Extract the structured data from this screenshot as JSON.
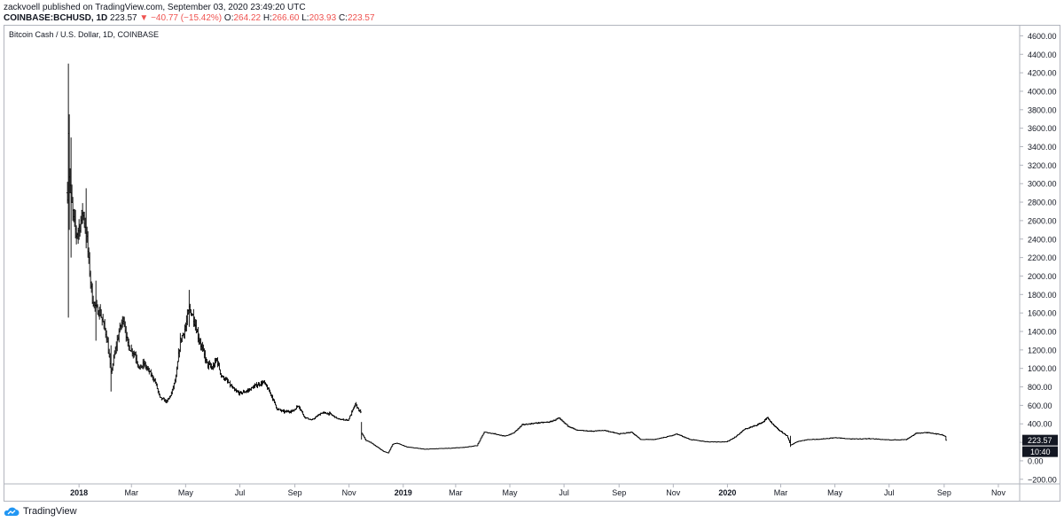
{
  "header": {
    "publish_line": "zackvoell published on TradingView.com, September 03, 2020 23:49:20 UTC",
    "symbol": "COINBASE:BCHUSD, 1D",
    "last": "223.57",
    "change_arrow": "▼",
    "change": "−40.77 (−15.42%)",
    "o_label": "O:",
    "o_val": "264.22",
    "h_label": "H:",
    "h_val": "266.60",
    "l_label": "L:",
    "l_val": "203.93",
    "c_label": "C:",
    "c_val": "223.57"
  },
  "footer": {
    "brand": "TradingView"
  },
  "colors": {
    "ohlc": "#ef5350",
    "bars": "#000000",
    "grid_border": "#b2b5be",
    "badge_bg": "#131722"
  },
  "chart_data": {
    "type": "ohlc",
    "title": "Bitcoin Cash / U.S. Dollar, 1D, COINBASE",
    "ylim": [
      -250,
      4700
    ],
    "y_ticks": [
      -200,
      0,
      200,
      400,
      600,
      800,
      1000,
      1200,
      1400,
      1600,
      1800,
      2000,
      2200,
      2400,
      2600,
      2800,
      3000,
      3200,
      3400,
      3600,
      3800,
      4000,
      4200,
      4400,
      4600
    ],
    "y_tick_labels": [
      "−200.00",
      "0.00",
      "200.00",
      "400.00",
      "600.00",
      "800.00",
      "1000.00",
      "1200.00",
      "1400.00",
      "1600.00",
      "1800.00",
      "2000.00",
      "2200.00",
      "2400.00",
      "2600.00",
      "2800.00",
      "3000.00",
      "3200.00",
      "3400.00",
      "3600.00",
      "3800.00",
      "4000.00",
      "4200.00",
      "4400.00",
      "4600.00"
    ],
    "x_range": [
      "2017-10-10",
      "2020-11-25"
    ],
    "x_ticks": [
      {
        "date": "2018-01-01",
        "label": "2018",
        "bold": true
      },
      {
        "date": "2018-03-01",
        "label": "Mar"
      },
      {
        "date": "2018-05-01",
        "label": "May"
      },
      {
        "date": "2018-07-01",
        "label": "Jul"
      },
      {
        "date": "2018-09-01",
        "label": "Sep"
      },
      {
        "date": "2018-11-01",
        "label": "Nov"
      },
      {
        "date": "2019-01-01",
        "label": "2019",
        "bold": true
      },
      {
        "date": "2019-03-01",
        "label": "Mar"
      },
      {
        "date": "2019-05-01",
        "label": "May"
      },
      {
        "date": "2019-07-01",
        "label": "Jul"
      },
      {
        "date": "2019-09-01",
        "label": "Sep"
      },
      {
        "date": "2019-11-01",
        "label": "Nov"
      },
      {
        "date": "2020-01-01",
        "label": "2020",
        "bold": true
      },
      {
        "date": "2020-03-01",
        "label": "Mar"
      },
      {
        "date": "2020-05-01",
        "label": "May"
      },
      {
        "date": "2020-07-01",
        "label": "Jul"
      },
      {
        "date": "2020-09-01",
        "label": "Sep"
      },
      {
        "date": "2020-11-01",
        "label": "Nov"
      }
    ],
    "price_label": "223.57",
    "countdown_label": "10:40",
    "series": [
      {
        "anchors": [
          [
            "2017-12-19",
            2900
          ],
          [
            "2017-12-20",
            3600
          ],
          [
            "2017-12-21",
            3100
          ],
          [
            "2017-12-23",
            2850
          ],
          [
            "2017-12-26",
            2600
          ],
          [
            "2017-12-29",
            2450
          ],
          [
            "2018-01-02",
            2550
          ],
          [
            "2018-01-05",
            2700
          ],
          [
            "2018-01-09",
            2500
          ],
          [
            "2018-01-12",
            2150
          ],
          [
            "2018-01-16",
            1750
          ],
          [
            "2018-01-20",
            1650
          ],
          [
            "2018-01-25",
            1600
          ],
          [
            "2018-02-01",
            1350
          ],
          [
            "2018-02-06",
            950
          ],
          [
            "2018-02-10",
            1150
          ],
          [
            "2018-02-15",
            1400
          ],
          [
            "2018-02-20",
            1550
          ],
          [
            "2018-02-25",
            1250
          ],
          [
            "2018-03-05",
            1150
          ],
          [
            "2018-03-10",
            1000
          ],
          [
            "2018-03-15",
            1050
          ],
          [
            "2018-03-22",
            950
          ],
          [
            "2018-03-28",
            850
          ],
          [
            "2018-04-02",
            680
          ],
          [
            "2018-04-10",
            640
          ],
          [
            "2018-04-15",
            730
          ],
          [
            "2018-04-20",
            900
          ],
          [
            "2018-04-25",
            1300
          ],
          [
            "2018-05-01",
            1450
          ],
          [
            "2018-05-05",
            1650
          ],
          [
            "2018-05-10",
            1550
          ],
          [
            "2018-05-15",
            1350
          ],
          [
            "2018-05-20",
            1200
          ],
          [
            "2018-05-25",
            1050
          ],
          [
            "2018-05-31",
            1000
          ],
          [
            "2018-06-05",
            1100
          ],
          [
            "2018-06-10",
            920
          ],
          [
            "2018-06-15",
            880
          ],
          [
            "2018-06-25",
            760
          ],
          [
            "2018-07-01",
            730
          ],
          [
            "2018-07-10",
            760
          ],
          [
            "2018-07-20",
            820
          ],
          [
            "2018-07-28",
            850
          ],
          [
            "2018-08-05",
            720
          ],
          [
            "2018-08-12",
            560
          ],
          [
            "2018-08-20",
            530
          ],
          [
            "2018-08-30",
            540
          ],
          [
            "2018-09-05",
            600
          ],
          [
            "2018-09-12",
            470
          ],
          [
            "2018-09-20",
            440
          ],
          [
            "2018-10-01",
            520
          ],
          [
            "2018-10-10",
            510
          ],
          [
            "2018-10-20",
            450
          ],
          [
            "2018-10-31",
            440
          ],
          [
            "2018-11-08",
            610
          ],
          [
            "2018-11-14",
            520
          ],
          [
            "2018-11-15",
            300
          ],
          [
            "2018-11-20",
            220
          ],
          [
            "2018-11-25",
            200
          ],
          [
            "2018-12-01",
            160
          ],
          [
            "2018-12-10",
            100
          ],
          [
            "2018-12-15",
            85
          ],
          [
            "2018-12-20",
            180
          ],
          [
            "2018-12-25",
            190
          ],
          [
            "2019-01-05",
            150
          ],
          [
            "2019-01-25",
            125
          ],
          [
            "2019-02-20",
            135
          ],
          [
            "2019-03-10",
            145
          ],
          [
            "2019-03-25",
            165
          ],
          [
            "2019-04-02",
            310
          ],
          [
            "2019-04-15",
            290
          ],
          [
            "2019-04-25",
            265
          ],
          [
            "2019-05-05",
            300
          ],
          [
            "2019-05-15",
            390
          ],
          [
            "2019-06-01",
            410
          ],
          [
            "2019-06-15",
            420
          ],
          [
            "2019-06-25",
            460
          ],
          [
            "2019-07-05",
            380
          ],
          [
            "2019-07-15",
            330
          ],
          [
            "2019-08-01",
            320
          ],
          [
            "2019-08-15",
            330
          ],
          [
            "2019-09-01",
            290
          ],
          [
            "2019-09-15",
            310
          ],
          [
            "2019-09-25",
            230
          ],
          [
            "2019-10-10",
            230
          ],
          [
            "2019-10-25",
            260
          ],
          [
            "2019-11-05",
            290
          ],
          [
            "2019-11-20",
            230
          ],
          [
            "2019-12-10",
            205
          ],
          [
            "2019-12-31",
            205
          ],
          [
            "2020-01-10",
            260
          ],
          [
            "2020-01-20",
            340
          ],
          [
            "2020-02-01",
            380
          ],
          [
            "2020-02-10",
            420
          ],
          [
            "2020-02-15",
            470
          ],
          [
            "2020-02-20",
            400
          ],
          [
            "2020-02-28",
            330
          ],
          [
            "2020-03-08",
            270
          ],
          [
            "2020-03-12",
            170
          ],
          [
            "2020-03-20",
            210
          ],
          [
            "2020-04-01",
            230
          ],
          [
            "2020-04-15",
            235
          ],
          [
            "2020-05-01",
            250
          ],
          [
            "2020-05-20",
            235
          ],
          [
            "2020-06-10",
            240
          ],
          [
            "2020-07-01",
            225
          ],
          [
            "2020-07-20",
            230
          ],
          [
            "2020-08-01",
            300
          ],
          [
            "2020-08-15",
            305
          ],
          [
            "2020-08-30",
            280
          ],
          [
            "2020-09-02",
            264
          ],
          [
            "2020-09-03",
            224
          ]
        ],
        "spikes": [
          {
            "date": "2017-12-20",
            "high": 4300,
            "low": 1550
          },
          {
            "date": "2017-12-21",
            "high": 3750,
            "low": 2500
          },
          {
            "date": "2017-12-23",
            "high": 3500,
            "low": 2200
          },
          {
            "date": "2018-01-09",
            "high": 2950,
            "low": 2300
          },
          {
            "date": "2018-01-20",
            "high": 1950,
            "low": 1300
          },
          {
            "date": "2018-02-06",
            "high": 1250,
            "low": 750
          },
          {
            "date": "2018-05-05",
            "high": 1850,
            "low": 1450
          },
          {
            "date": "2018-11-15",
            "high": 420,
            "low": 230
          },
          {
            "date": "2020-03-12",
            "high": 270,
            "low": 150
          }
        ]
      }
    ]
  }
}
